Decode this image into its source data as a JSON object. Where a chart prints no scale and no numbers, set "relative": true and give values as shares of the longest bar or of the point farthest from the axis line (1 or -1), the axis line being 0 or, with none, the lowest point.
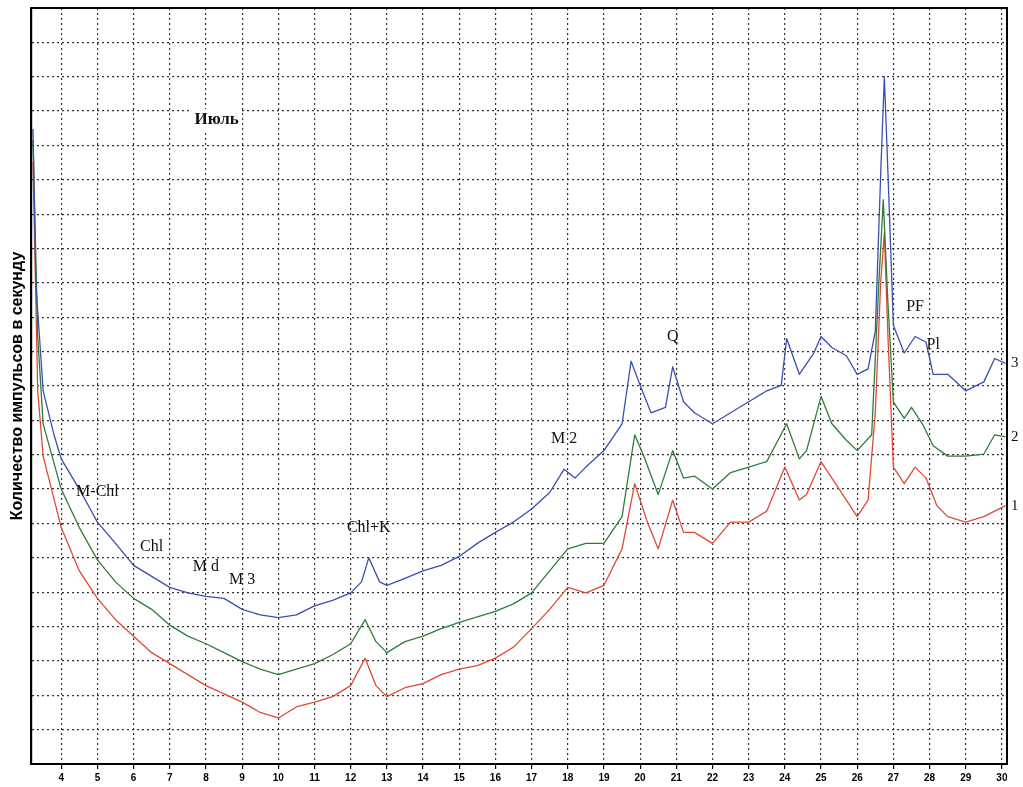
{
  "chart_data": {
    "type": "line",
    "relative": true,
    "ylabel": "Количество импульсов в секунду",
    "xlim": [
      3.17,
      30.14
    ],
    "xticks": [
      4,
      5,
      6,
      7,
      8,
      9,
      10,
      11,
      12,
      13,
      14,
      15,
      16,
      17,
      18,
      19,
      20,
      21,
      22,
      23,
      24,
      25,
      26,
      27,
      28,
      29,
      30
    ],
    "grid": true,
    "legend": false,
    "marker": "none",
    "line_style": "solid",
    "annotations": [
      "Июль",
      {
        "text": "M-Chl",
        "x": 5,
        "y": 0.352
      },
      {
        "text": "Chl",
        "x": 6.5,
        "y": 0.273
      },
      {
        "text": "M d",
        "x": 8,
        "y": 0.244
      },
      {
        "text": "M 3",
        "x": 9,
        "y": 0.225
      },
      {
        "text": "Chl+K",
        "x": 12.5,
        "y": 0.3
      },
      {
        "text": "M 2",
        "x": 17.9,
        "y": 0.429
      },
      {
        "text": "Q",
        "x": 20.9,
        "y": 0.578
      },
      {
        "text": "PF",
        "x": 27.6,
        "y": 0.622
      },
      {
        "text": "Pl",
        "x": 28.1,
        "y": 0.567
      }
    ],
    "series": [
      {
        "name": "3",
        "color": "#3a4fb0",
        "x": [
          3.22,
          3.3,
          3.5,
          3.8,
          4,
          4.5,
          5,
          5.5,
          6,
          6.5,
          7,
          7.5,
          8,
          8.5,
          9,
          9.5,
          10,
          10.5,
          11,
          11.5,
          12,
          12.3,
          12.5,
          12.8,
          13,
          13.5,
          14,
          14.5,
          15,
          15.5,
          16,
          16.5,
          17,
          17.5,
          17.9,
          18.2,
          18.5,
          19,
          19.5,
          19.75,
          20,
          20.3,
          20.7,
          20.9,
          21.2,
          21.5,
          22,
          22.5,
          23,
          23.5,
          23.9,
          24.05,
          24.4,
          24.8,
          25,
          25.3,
          25.7,
          26,
          26.3,
          26.5,
          26.65,
          26.75,
          26.85,
          27,
          27.3,
          27.6,
          27.9,
          28.1,
          28.5,
          29,
          29.5,
          29.8,
          30.1
        ],
        "values": [
          0.924,
          0.698,
          0.543,
          0.479,
          0.444,
          0.4,
          0.352,
          0.321,
          0.289,
          0.273,
          0.257,
          0.249,
          0.244,
          0.241,
          0.225,
          0.217,
          0.213,
          0.217,
          0.23,
          0.238,
          0.249,
          0.265,
          0.3,
          0.265,
          0.26,
          0.27,
          0.281,
          0.289,
          0.302,
          0.321,
          0.337,
          0.352,
          0.371,
          0.395,
          0.429,
          0.416,
          0.432,
          0.456,
          0.495,
          0.586,
          0.551,
          0.511,
          0.519,
          0.578,
          0.527,
          0.511,
          0.495,
          0.511,
          0.527,
          0.543,
          0.551,
          0.619,
          0.567,
          0.598,
          0.622,
          0.606,
          0.594,
          0.567,
          0.575,
          0.63,
          0.86,
          1,
          0.86,
          0.638,
          0.598,
          0.622,
          0.614,
          0.567,
          0.567,
          0.543,
          0.556,
          0.59,
          0.583
        ]
      },
      {
        "name": "2",
        "color": "#2e7d3a",
        "x": [
          3.22,
          3.35,
          3.5,
          4,
          4.5,
          5,
          5.5,
          6,
          6.5,
          7,
          7.5,
          8,
          8.5,
          9,
          9.5,
          10,
          10.5,
          11,
          11.5,
          12,
          12.4,
          12.7,
          13,
          13.5,
          14,
          14.5,
          15,
          15.5,
          16,
          16.5,
          17,
          17.5,
          18,
          18.5,
          19,
          19.5,
          19.85,
          20.1,
          20.5,
          20.9,
          21.2,
          21.5,
          22,
          22.5,
          23,
          23.5,
          24.05,
          24.4,
          24.6,
          25,
          25.3,
          25.7,
          26,
          26.4,
          26.6,
          26.72,
          26.85,
          27,
          27.3,
          27.5,
          27.8,
          28.1,
          28.5,
          29,
          29.5,
          29.8,
          30.1
        ],
        "values": [
          0.908,
          0.622,
          0.495,
          0.4,
          0.344,
          0.297,
          0.265,
          0.241,
          0.225,
          0.202,
          0.186,
          0.175,
          0.162,
          0.149,
          0.138,
          0.13,
          0.138,
          0.146,
          0.159,
          0.175,
          0.21,
          0.178,
          0.162,
          0.178,
          0.186,
          0.197,
          0.206,
          0.214,
          0.222,
          0.233,
          0.249,
          0.281,
          0.313,
          0.321,
          0.321,
          0.36,
          0.479,
          0.448,
          0.392,
          0.456,
          0.416,
          0.419,
          0.4,
          0.424,
          0.432,
          0.44,
          0.495,
          0.444,
          0.456,
          0.535,
          0.495,
          0.471,
          0.456,
          0.479,
          0.702,
          0.821,
          0.67,
          0.527,
          0.503,
          0.519,
          0.495,
          0.463,
          0.448,
          0.448,
          0.451,
          0.479,
          0.476
        ]
      },
      {
        "name": "1",
        "color": "#e04a35",
        "x": [
          3.22,
          3.35,
          3.5,
          4,
          4.5,
          5,
          5.5,
          6,
          6.5,
          7,
          7.5,
          8,
          8.5,
          9,
          9.5,
          10,
          10.5,
          11,
          11.5,
          12,
          12.4,
          12.7,
          13,
          13.5,
          14,
          14.5,
          15,
          15.5,
          16,
          16.5,
          17,
          17.5,
          18,
          18.5,
          19,
          19.5,
          19.85,
          20.2,
          20.5,
          20.9,
          21.2,
          21.5,
          22,
          22.5,
          23,
          23.5,
          24,
          24.4,
          24.6,
          25,
          25.3,
          25.7,
          26,
          26.3,
          26.5,
          26.65,
          26.75,
          26.85,
          27,
          27.3,
          27.6,
          27.9,
          28.2,
          28.5,
          29,
          29.5,
          30.1
        ],
        "values": [
          0.876,
          0.543,
          0.448,
          0.344,
          0.281,
          0.241,
          0.21,
          0.186,
          0.162,
          0.146,
          0.13,
          0.114,
          0.102,
          0.09,
          0.075,
          0.067,
          0.083,
          0.09,
          0.098,
          0.114,
          0.154,
          0.114,
          0.098,
          0.111,
          0.117,
          0.13,
          0.138,
          0.143,
          0.154,
          0.17,
          0.197,
          0.225,
          0.257,
          0.249,
          0.26,
          0.313,
          0.408,
          0.352,
          0.313,
          0.384,
          0.337,
          0.337,
          0.321,
          0.352,
          0.352,
          0.368,
          0.432,
          0.384,
          0.392,
          0.44,
          0.416,
          0.384,
          0.36,
          0.384,
          0.511,
          0.702,
          0.773,
          0.622,
          0.432,
          0.408,
          0.432,
          0.416,
          0.376,
          0.36,
          0.352,
          0.36,
          0.376
        ]
      }
    ]
  }
}
